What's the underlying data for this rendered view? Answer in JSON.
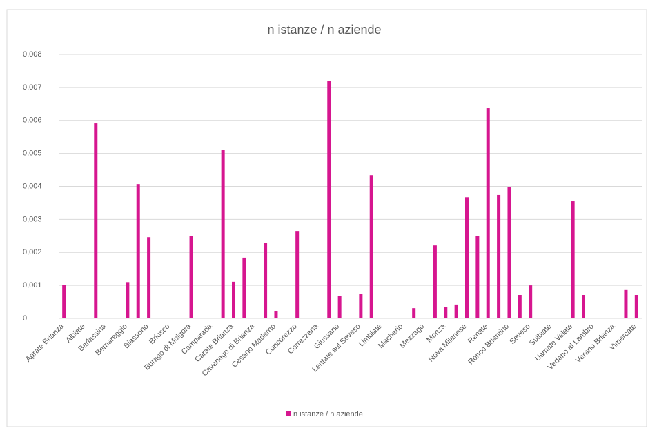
{
  "chart_data": {
    "type": "bar",
    "title": "n istanze / n aziende",
    "categories": [
      "Agrate Brianza",
      null,
      "Albiate",
      null,
      "Barlassina",
      null,
      "Bernareggio",
      null,
      "Biassono",
      null,
      "Briosco",
      null,
      "Burago di Molgora",
      null,
      "Camparada",
      null,
      "Carate Brianza",
      null,
      "Cavenago di Brianza",
      null,
      "Cesano Maderno",
      null,
      "Concorezzo",
      null,
      "Correzzana",
      null,
      "Giussano",
      null,
      "Lentate sul Seveso",
      null,
      "Limbiate",
      null,
      "Macherio",
      null,
      "Mezzago",
      null,
      "Monza",
      null,
      "Nova Milanese",
      null,
      "Renate",
      null,
      "Ronco Briantino",
      null,
      "Seveso",
      null,
      "Sulbiate",
      null,
      "Usmate Velate",
      null,
      "Vedano al Lambro",
      null,
      "Verano Brianza",
      null,
      "Vimercate"
    ],
    "series": [
      {
        "name": "n istanze / n aziende",
        "color": "#d6168f",
        "values": [
          0.00102,
          0,
          0,
          0.00591,
          0,
          0,
          0.0011,
          0.00407,
          0.00246,
          0,
          0,
          0,
          0.0025,
          0,
          0,
          0.00511,
          0.00111,
          0.00184,
          0,
          0.00228,
          0.00023,
          0,
          0.00265,
          0,
          0,
          0.0072,
          0.00067,
          0,
          0.00075,
          0.00434,
          0,
          0,
          0,
          0.00031,
          0,
          0.00221,
          0.00035,
          0.00042,
          0.00367,
          0.0025,
          0.00637,
          0.00374,
          0.00397,
          0.00071,
          0.001,
          0,
          0,
          0,
          0.00355,
          0.00071,
          0,
          0,
          0,
          0.00086,
          0.00071
        ]
      }
    ],
    "ylim": [
      0,
      0.008
    ],
    "yticks": [
      0,
      {
        "value": 0.001,
        "label": "0,001"
      },
      {
        "value": 0.002,
        "label": "0,002"
      },
      {
        "value": 0.003,
        "label": "0,003"
      },
      {
        "value": 0.004,
        "label": "0,004"
      },
      {
        "value": 0.005,
        "label": "0,005"
      },
      {
        "value": 0.006,
        "label": "0,006"
      },
      {
        "value": 0.007,
        "label": "0,007"
      },
      {
        "value": 0.008,
        "label": "0,008"
      }
    ],
    "grid": true,
    "legend": "bottom"
  }
}
